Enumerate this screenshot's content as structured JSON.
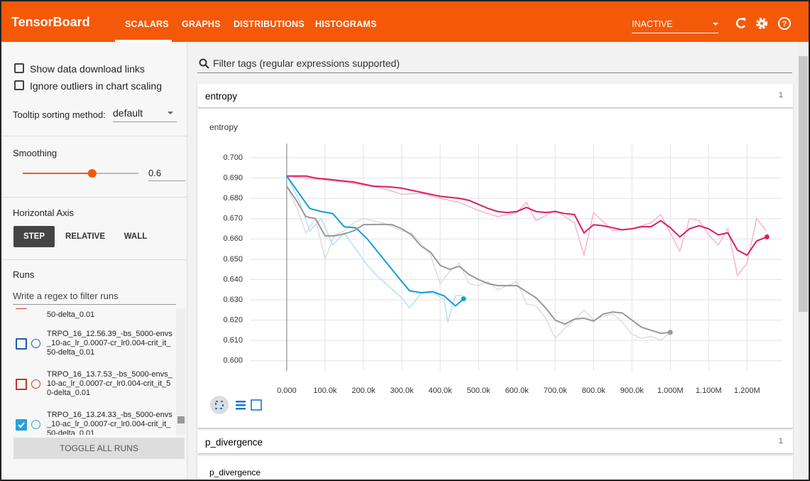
{
  "header": {
    "brand": "TensorBoard",
    "tabs": [
      "SCALARS",
      "GRAPHS",
      "DISTRIBUTIONS",
      "HISTOGRAMS"
    ],
    "status": "INACTIVE"
  },
  "sidebar": {
    "options": [
      "Show data download links",
      "Ignore outliers in chart scaling"
    ],
    "tooltip_label": "Tooltip sorting method:",
    "tooltip_value": "default",
    "smoothing_label": "Smoothing",
    "smoothing_value": 0.6,
    "axis_label": "Horizontal Axis",
    "axis_options": [
      "STEP",
      "RELATIVE",
      "WALL"
    ],
    "runs_label": "Runs",
    "runs_filter": "Write a regex to filter runs",
    "runs": [
      {
        "label": "50-delta_0.01",
        "color": "#d0342c",
        "checked": false
      },
      {
        "label": "TRPO_16_12.56.39_-bs_5000-envs_10-ac_lr_0.0007-cr_lr0.004-crit_it_50-delta_0.01",
        "color": "#1f5fa8",
        "checked": false
      },
      {
        "label": "TRPO_16_13.7.53_-bs_5000-envs_10-ac_lr_0.0007-cr_lr0.004-crit_it_50-delta_0.01",
        "color": "#c0392b",
        "checked": false
      },
      {
        "label": "TRPO_16_13.24.33_-bs_5000-envs_10-ac_lr_0.0007-cr_lr0.004-crit_it_50-delta_0.01",
        "color": "#29a0dc",
        "checked": true
      }
    ],
    "toggle": "TOGGLE ALL RUNS"
  },
  "main": {
    "filter": "Filter tags (regular expressions supported)",
    "sections": [
      {
        "name": "entropy",
        "count": 1
      },
      {
        "name": "p_divergence",
        "count": 1
      }
    ],
    "second_chart_title": "p_divergence"
  },
  "chart_data": {
    "type": "line",
    "title": "entropy",
    "grid": true,
    "xlim": [
      -96000,
      1292000
    ],
    "ylim": [
      0.595,
      0.707
    ],
    "xticks": [
      {
        "value": 0,
        "label": "0.000"
      },
      {
        "value": 100000,
        "label": "100.0k"
      },
      {
        "value": 200000,
        "label": "200.0k"
      },
      {
        "value": 300000,
        "label": "300.0k"
      },
      {
        "value": 400000,
        "label": "400.0k"
      },
      {
        "value": 500000,
        "label": "500.0k"
      },
      {
        "value": 600000,
        "label": "600.0k"
      },
      {
        "value": 700000,
        "label": "700.0k"
      },
      {
        "value": 800000,
        "label": "800.0k"
      },
      {
        "value": 900000,
        "label": "900.0k"
      },
      {
        "value": 1000000,
        "label": "1.000M"
      },
      {
        "value": 1100000,
        "label": "1.100M"
      },
      {
        "value": 1200000,
        "label": "1.200M"
      }
    ],
    "yticks": [
      {
        "value": 0.6,
        "label": "0.600"
      },
      {
        "value": 0.61,
        "label": "0.610"
      },
      {
        "value": 0.62,
        "label": "0.620"
      },
      {
        "value": 0.63,
        "label": "0.630"
      },
      {
        "value": 0.64,
        "label": "0.640"
      },
      {
        "value": 0.65,
        "label": "0.650"
      },
      {
        "value": 0.66,
        "label": "0.660"
      },
      {
        "value": 0.67,
        "label": "0.670"
      },
      {
        "value": 0.68,
        "label": "0.680"
      },
      {
        "value": 0.69,
        "label": "0.690"
      },
      {
        "value": 0.7,
        "label": "0.700"
      }
    ],
    "series": [
      {
        "color": "#f5b6cb",
        "end_marker": false,
        "x": [
          0,
          50000,
          100000,
          150000,
          200000,
          250000,
          300000,
          350000,
          400000,
          450000,
          500000,
          550000,
          600000,
          625000,
          650000,
          700000,
          750000,
          775000,
          800000,
          850000,
          900000,
          950000,
          975000,
          1000000,
          1025000,
          1050000,
          1075000,
          1100000,
          1125000,
          1150000,
          1175000,
          1200000,
          1225000,
          1250000
        ],
        "values": [
          0.691,
          0.69,
          0.689,
          0.688,
          0.6865,
          0.685,
          0.682,
          0.6825,
          0.68,
          0.678,
          0.674,
          0.671,
          0.673,
          0.678,
          0.669,
          0.674,
          0.668,
          0.652,
          0.673,
          0.664,
          0.665,
          0.668,
          0.672,
          0.663,
          0.654,
          0.67,
          0.669,
          0.662,
          0.657,
          0.665,
          0.642,
          0.648,
          0.67,
          0.664
        ]
      },
      {
        "color": "#b6e0f3",
        "end_marker": false,
        "x": [
          0,
          30000,
          60000,
          90000,
          120000,
          150000,
          180000,
          210000,
          240000,
          270000,
          300000,
          320000,
          350000,
          380000,
          410000,
          420000,
          440000,
          460000
        ],
        "values": [
          0.691,
          0.68,
          0.664,
          0.67,
          0.657,
          0.663,
          0.655,
          0.647,
          0.641,
          0.636,
          0.631,
          0.626,
          0.633,
          0.634,
          0.63,
          0.619,
          0.632,
          0.632
        ]
      },
      {
        "color": "#dddddd",
        "end_marker": false,
        "x": [
          0,
          25000,
          50000,
          75000,
          100000,
          125000,
          150000,
          175000,
          200000,
          250000,
          300000,
          325000,
          350000,
          375000,
          400000,
          425000,
          450000,
          475000,
          500000,
          525000,
          550000,
          575000,
          600000,
          625000,
          650000,
          675000,
          700000,
          725000,
          750000,
          775000,
          800000,
          825000,
          850000,
          875000,
          900000,
          925000,
          950000,
          975000,
          1000000
        ],
        "values": [
          0.686,
          0.676,
          0.663,
          0.67,
          0.65,
          0.662,
          0.664,
          0.668,
          0.67,
          0.668,
          0.664,
          0.663,
          0.658,
          0.652,
          0.638,
          0.644,
          0.648,
          0.638,
          0.637,
          0.639,
          0.635,
          0.637,
          0.639,
          0.628,
          0.627,
          0.621,
          0.611,
          0.616,
          0.62,
          0.625,
          0.62,
          0.622,
          0.623,
          0.619,
          0.613,
          0.611,
          0.612,
          0.61,
          0.614
        ]
      },
      {
        "color": "#dc1f5c",
        "end_marker": true,
        "x": [
          0,
          25000,
          50000,
          75000,
          100000,
          125000,
          150000,
          175000,
          200000,
          225000,
          250000,
          275000,
          300000,
          325000,
          350000,
          375000,
          400000,
          425000,
          450000,
          475000,
          500000,
          525000,
          550000,
          575000,
          600000,
          625000,
          650000,
          675000,
          700000,
          725000,
          750000,
          775000,
          800000,
          825000,
          850000,
          875000,
          900000,
          925000,
          950000,
          975000,
          1000000,
          1025000,
          1050000,
          1075000,
          1100000,
          1125000,
          1150000,
          1175000,
          1200000,
          1225000,
          1252000
        ],
        "values": [
          0.691,
          0.691,
          0.691,
          0.69,
          0.6895,
          0.689,
          0.6885,
          0.688,
          0.687,
          0.686,
          0.6858,
          0.6855,
          0.685,
          0.684,
          0.683,
          0.682,
          0.681,
          0.6805,
          0.68,
          0.679,
          0.677,
          0.675,
          0.6735,
          0.673,
          0.6735,
          0.6755,
          0.6735,
          0.673,
          0.6735,
          0.6725,
          0.672,
          0.663,
          0.667,
          0.6665,
          0.6655,
          0.6645,
          0.665,
          0.666,
          0.666,
          0.669,
          0.6655,
          0.661,
          0.665,
          0.6665,
          0.665,
          0.662,
          0.663,
          0.6545,
          0.652,
          0.659,
          0.661
        ]
      },
      {
        "color": "#129fda",
        "end_marker": true,
        "x": [
          0,
          30000,
          60000,
          90000,
          120000,
          150000,
          180000,
          210000,
          240000,
          270000,
          300000,
          320000,
          350000,
          380000,
          410000,
          440000,
          461000
        ],
        "values": [
          0.691,
          0.683,
          0.675,
          0.6735,
          0.6725,
          0.666,
          0.6655,
          0.66,
          0.653,
          0.646,
          0.639,
          0.6345,
          0.6335,
          0.634,
          0.632,
          0.627,
          0.6305
        ]
      },
      {
        "color": "#999999",
        "end_marker": true,
        "x": [
          0,
          25000,
          50000,
          75000,
          100000,
          125000,
          150000,
          175000,
          200000,
          250000,
          275000,
          300000,
          325000,
          350000,
          375000,
          400000,
          425000,
          450000,
          475000,
          500000,
          525000,
          550000,
          575000,
          600000,
          625000,
          650000,
          675000,
          700000,
          725000,
          750000,
          775000,
          800000,
          825000,
          850000,
          875000,
          900000,
          925000,
          950000,
          975000,
          1000000
        ],
        "values": [
          0.686,
          0.679,
          0.671,
          0.67,
          0.6615,
          0.6615,
          0.6625,
          0.664,
          0.667,
          0.6672,
          0.667,
          0.665,
          0.662,
          0.6565,
          0.6535,
          0.647,
          0.645,
          0.6465,
          0.6425,
          0.64,
          0.638,
          0.637,
          0.637,
          0.637,
          0.634,
          0.631,
          0.626,
          0.62,
          0.618,
          0.6205,
          0.621,
          0.6195,
          0.623,
          0.624,
          0.6235,
          0.62,
          0.6165,
          0.615,
          0.6135,
          0.614
        ]
      }
    ]
  }
}
